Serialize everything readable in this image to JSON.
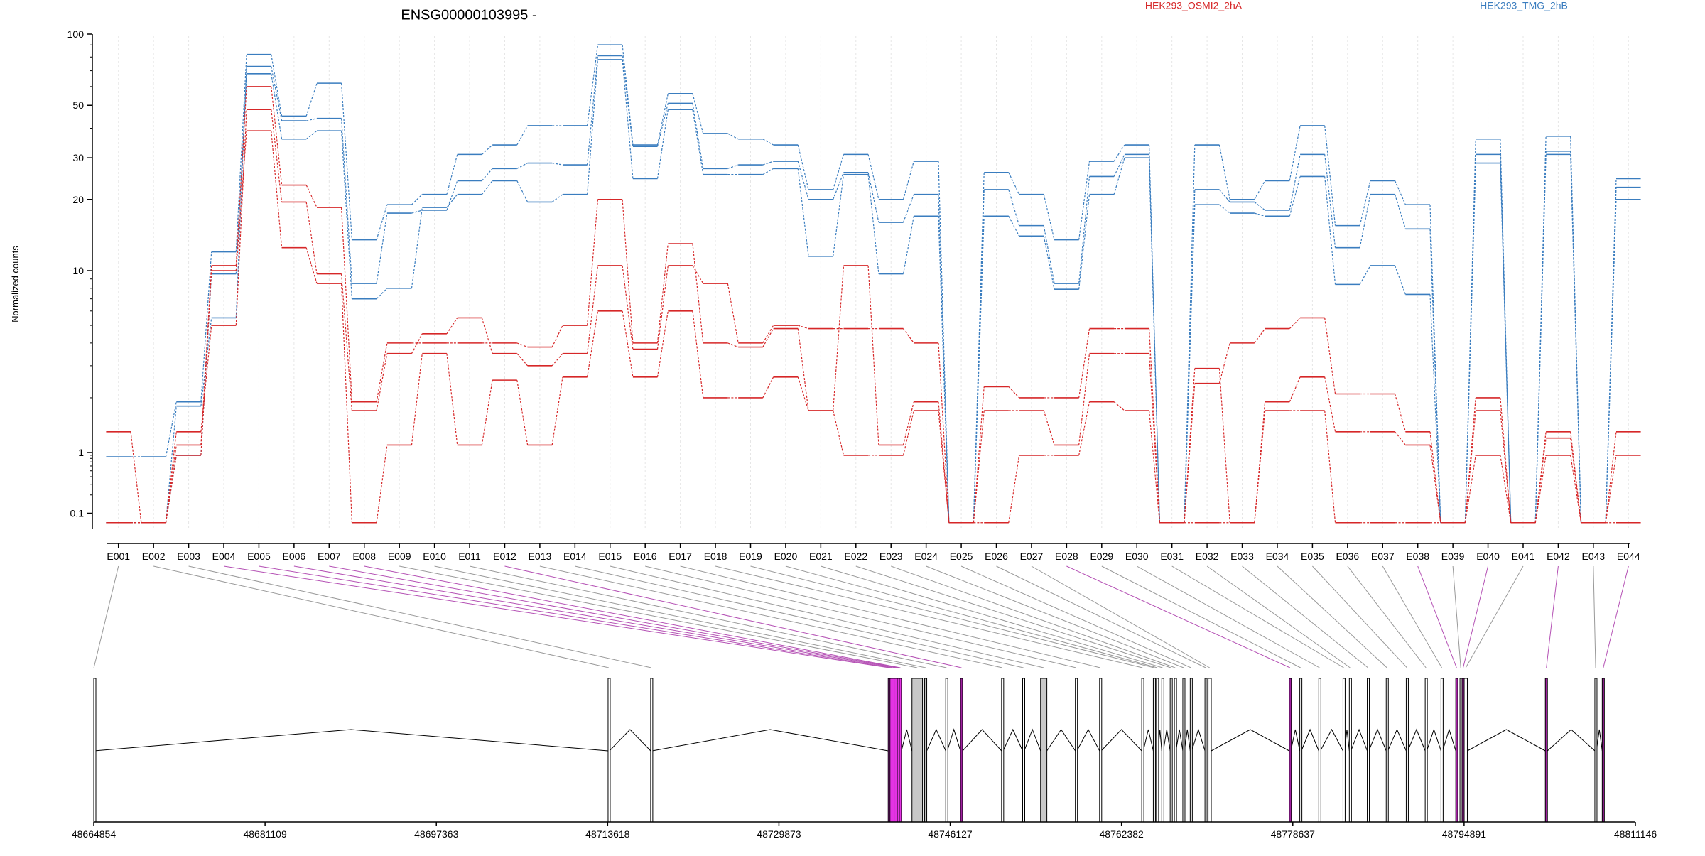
{
  "chart_data": {
    "type": "line",
    "title": "ENSG00000103995 -",
    "ylabel": "Normalized counts",
    "yscale": "log",
    "yticks": [
      "100",
      "50",
      "30",
      "20",
      "10",
      "1",
      "0.1"
    ],
    "yticks_values": [
      100,
      50,
      30,
      20,
      10,
      1,
      0.1
    ],
    "categories": [
      "E001",
      "E002",
      "E003",
      "E004",
      "E005",
      "E006",
      "E007",
      "E008",
      "E009",
      "E010",
      "E011",
      "E012",
      "E013",
      "E014",
      "E015",
      "E016",
      "E017",
      "E018",
      "E019",
      "E020",
      "E021",
      "E022",
      "E023",
      "E024",
      "E025",
      "E026",
      "E027",
      "E028",
      "E029",
      "E030",
      "E031",
      "E032",
      "E033",
      "E034",
      "E035",
      "E036",
      "E037",
      "E038",
      "E039",
      "E040",
      "E041",
      "E042",
      "E043",
      "E044"
    ],
    "legend": [
      {
        "label": "HEK293_OSMI2_2hA",
        "color": "#d62728"
      },
      {
        "label": "HEK293_TMG_2hB",
        "color": "#3a7dbf"
      }
    ],
    "series": [
      {
        "group": "HEK293_TMG_2hB",
        "color": "#3a7dbf",
        "values": [
          0.85,
          0.85,
          1.9,
          12,
          82,
          45,
          62,
          13.5,
          19,
          21,
          31,
          34,
          41,
          41,
          90,
          34,
          56,
          38,
          36,
          34,
          22,
          31,
          20,
          29,
          0.07,
          26,
          21,
          13.5,
          29,
          34,
          0.07,
          34,
          20,
          24,
          41,
          15.5,
          24,
          19,
          0.07,
          36,
          0.07,
          37,
          0.07,
          24.5
        ]
      },
      {
        "group": "HEK293_TMG_2hB",
        "color": "#3a7dbf",
        "values": [
          0.07,
          0.07,
          1.8,
          5.5,
          73,
          43,
          44,
          8.5,
          17.5,
          18,
          24,
          27,
          28.5,
          28,
          81,
          33.5,
          51,
          27,
          28,
          29,
          20,
          26,
          16,
          21,
          0.07,
          22,
          15.5,
          8.5,
          25,
          31,
          0.07,
          22,
          19.5,
          18,
          31,
          12.5,
          21,
          15,
          0.07,
          31,
          0.07,
          32,
          0.07,
          22.5
        ]
      },
      {
        "group": "HEK293_TMG_2hB",
        "color": "#3a7dbf",
        "values": [
          0.07,
          0.07,
          0.9,
          9.6,
          68,
          36,
          39,
          7,
          8,
          18.5,
          21,
          24,
          19.5,
          21,
          78,
          24.5,
          48,
          25.5,
          25.5,
          27,
          11.5,
          25.5,
          9.6,
          17,
          0.07,
          17,
          14,
          7.9,
          21,
          30,
          0.07,
          19,
          17.5,
          17,
          25,
          8.4,
          10.5,
          7.4,
          0.07,
          28.5,
          0.07,
          31,
          0.07,
          20
        ]
      },
      {
        "group": "HEK293_OSMI2_2hA",
        "color": "#d62728",
        "values": [
          1.3,
          0.07,
          1.1,
          10.5,
          60,
          23,
          18.5,
          1.9,
          4,
          4,
          4,
          4,
          3.8,
          5,
          20,
          4,
          13,
          4,
          3.8,
          4.8,
          1.7,
          10.5,
          1.1,
          1.9,
          0.07,
          2.3,
          2,
          2,
          4.8,
          4.8,
          0.07,
          2.4,
          4,
          4.8,
          5.5,
          2.1,
          2.1,
          1.3,
          0.07,
          2,
          0.07,
          1.3,
          0.07,
          1.3
        ]
      },
      {
        "group": "HEK293_OSMI2_2hA",
        "color": "#d62728",
        "values": [
          0.07,
          0.07,
          1.3,
          5,
          48,
          19.5,
          9.6,
          1.7,
          3.5,
          4.5,
          5.5,
          3.5,
          3,
          3.5,
          10.5,
          3.7,
          10.5,
          8.5,
          4,
          5,
          4.8,
          4.8,
          4.8,
          4,
          0.07,
          1.7,
          1.7,
          1.1,
          3.5,
          3.5,
          0.07,
          2.9,
          0.07,
          1.9,
          2.6,
          1.3,
          1.3,
          1.1,
          0.07,
          1.7,
          0.07,
          1.2,
          0.07,
          0.9
        ]
      },
      {
        "group": "HEK293_OSMI2_2hA",
        "color": "#d62728",
        "values": [
          0.07,
          0.07,
          0.9,
          10,
          39,
          12.5,
          8.5,
          0.07,
          1.1,
          3.5,
          1.1,
          2.5,
          1.1,
          2.6,
          6,
          2.6,
          6,
          2,
          2,
          2.6,
          1.7,
          0.9,
          0.9,
          1.7,
          0.07,
          0.07,
          0.9,
          0.9,
          1.9,
          1.7,
          0.07,
          0.07,
          0.07,
          1.7,
          1.7,
          0.07,
          0.07,
          0.07,
          0.07,
          0.9,
          0.07,
          0.9,
          0.07,
          0.07
        ]
      }
    ],
    "genome_axis": {
      "ticks": [
        "48664854",
        "48681109",
        "48697363",
        "48713618",
        "48729873",
        "48746127",
        "48762382",
        "48778637",
        "48794891",
        "48811146"
      ],
      "tick_values": [
        48664854,
        48681109,
        48697363,
        48713618,
        48729873,
        48746127,
        48762382,
        48778637,
        48794891,
        48811146
      ]
    },
    "gene_model": {
      "exons": [
        {
          "id": "E001",
          "start": 48664854,
          "end": 48664870,
          "fill": "#ffffff",
          "link": "#999999"
        },
        {
          "id": "E002",
          "start": 48713660,
          "end": 48713790,
          "fill": "#ffffff",
          "link": "#999999"
        },
        {
          "id": "E003",
          "start": 48717700,
          "end": 48717840,
          "fill": "#ffffff",
          "link": "#999999"
        },
        {
          "id": "E004",
          "start": 48740240,
          "end": 48740410,
          "fill": "#e433e4",
          "link": "#b450b4"
        },
        {
          "id": "E005",
          "start": 48740410,
          "end": 48740800,
          "fill": "#e433e4",
          "link": "#b450b4"
        },
        {
          "id": "E006",
          "start": 48740800,
          "end": 48741100,
          "fill": "#e433e4",
          "link": "#b450b4"
        },
        {
          "id": "E007",
          "start": 48741100,
          "end": 48741300,
          "fill": "#e433e4",
          "link": "#b450b4"
        },
        {
          "id": "E008",
          "start": 48741300,
          "end": 48741500,
          "fill": "#e433e4",
          "link": "#b450b4"
        },
        {
          "id": "E009",
          "start": 48742500,
          "end": 48743500,
          "fill": "#c8c8c8",
          "link": "#999999"
        },
        {
          "id": "E010",
          "start": 48743700,
          "end": 48743900,
          "fill": "#c8c8c8",
          "link": "#999999"
        },
        {
          "id": "E011",
          "start": 48745700,
          "end": 48745850,
          "fill": "#ffffff",
          "link": "#999999"
        },
        {
          "id": "E012",
          "start": 48747100,
          "end": 48747300,
          "fill": "#a020a0",
          "link": "#b450b4"
        },
        {
          "id": "E013",
          "start": 48751000,
          "end": 48751150,
          "fill": "#ffffff",
          "link": "#999999"
        },
        {
          "id": "E014",
          "start": 48753000,
          "end": 48753150,
          "fill": "#ffffff",
          "link": "#999999"
        },
        {
          "id": "E015",
          "start": 48754700,
          "end": 48755300,
          "fill": "#c8c8c8",
          "link": "#999999"
        },
        {
          "id": "E016",
          "start": 48758000,
          "end": 48758150,
          "fill": "#ffffff",
          "link": "#999999"
        },
        {
          "id": "E017",
          "start": 48760300,
          "end": 48760450,
          "fill": "#ffffff",
          "link": "#999999"
        },
        {
          "id": "E018",
          "start": 48764300,
          "end": 48764450,
          "fill": "#ffffff",
          "link": "#999999"
        },
        {
          "id": "E019",
          "start": 48765400,
          "end": 48765550,
          "fill": "#ffffff",
          "link": "#999999"
        },
        {
          "id": "E020",
          "start": 48765700,
          "end": 48765850,
          "fill": "#ffffff",
          "link": "#999999"
        },
        {
          "id": "E021",
          "start": 48766200,
          "end": 48766350,
          "fill": "#ffffff",
          "link": "#999999"
        },
        {
          "id": "E022",
          "start": 48767000,
          "end": 48767150,
          "fill": "#ffffff",
          "link": "#999999"
        },
        {
          "id": "E023",
          "start": 48767400,
          "end": 48767550,
          "fill": "#ffffff",
          "link": "#999999"
        },
        {
          "id": "E024",
          "start": 48768200,
          "end": 48768350,
          "fill": "#ffffff",
          "link": "#999999"
        },
        {
          "id": "E025",
          "start": 48768900,
          "end": 48769050,
          "fill": "#ffffff",
          "link": "#999999"
        },
        {
          "id": "E026",
          "start": 48770300,
          "end": 48770450,
          "fill": "#ffffff",
          "link": "#999999"
        },
        {
          "id": "E027",
          "start": 48770600,
          "end": 48770900,
          "fill": "#ffffff",
          "link": "#999999"
        },
        {
          "id": "E028",
          "start": 48778300,
          "end": 48778450,
          "fill": "#a020a0",
          "link": "#b450b4"
        },
        {
          "id": "E029",
          "start": 48779300,
          "end": 48779450,
          "fill": "#ffffff",
          "link": "#999999"
        },
        {
          "id": "E030",
          "start": 48781100,
          "end": 48781250,
          "fill": "#ffffff",
          "link": "#999999"
        },
        {
          "id": "E031",
          "start": 48783400,
          "end": 48783550,
          "fill": "#ffffff",
          "link": "#999999"
        },
        {
          "id": "E032",
          "start": 48784000,
          "end": 48784150,
          "fill": "#ffffff",
          "link": "#999999"
        },
        {
          "id": "E033",
          "start": 48785700,
          "end": 48785850,
          "fill": "#ffffff",
          "link": "#999999"
        },
        {
          "id": "E034",
          "start": 48787500,
          "end": 48787650,
          "fill": "#ffffff",
          "link": "#999999"
        },
        {
          "id": "E035",
          "start": 48789400,
          "end": 48789550,
          "fill": "#ffffff",
          "link": "#999999"
        },
        {
          "id": "E036",
          "start": 48791200,
          "end": 48791350,
          "fill": "#ffffff",
          "link": "#999999"
        },
        {
          "id": "E037",
          "start": 48792700,
          "end": 48792850,
          "fill": "#ffffff",
          "link": "#999999"
        },
        {
          "id": "E038",
          "start": 48794100,
          "end": 48794250,
          "fill": "#a020a0",
          "link": "#b450b4"
        },
        {
          "id": "E039",
          "start": 48794500,
          "end": 48794650,
          "fill": "#ffffff",
          "link": "#999999"
        },
        {
          "id": "E040",
          "start": 48794700,
          "end": 48794900,
          "fill": "#a020a0",
          "link": "#b450b4"
        },
        {
          "id": "E041",
          "start": 48794900,
          "end": 48795200,
          "fill": "#ffffff",
          "link": "#999999"
        },
        {
          "id": "E042",
          "start": 48802600,
          "end": 48802800,
          "fill": "#a020a0",
          "link": "#b450b4"
        },
        {
          "id": "E043",
          "start": 48807300,
          "end": 48807450,
          "fill": "#ffffff",
          "link": "#999999"
        },
        {
          "id": "E044",
          "start": 48808000,
          "end": 48808200,
          "fill": "#a020a0",
          "link": "#b450b4"
        }
      ]
    }
  }
}
